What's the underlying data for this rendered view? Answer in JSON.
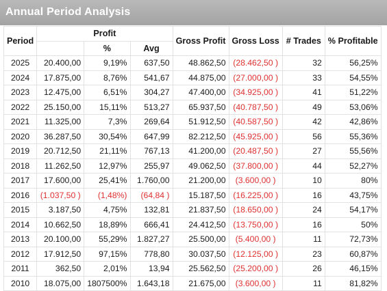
{
  "title": "Annual Period Analysis",
  "headers": {
    "period": "Period",
    "profit": "Profit",
    "profit_pct": "%",
    "profit_avg": "Avg",
    "gross_profit": "Gross Profit",
    "gross_loss": "Gross Loss",
    "trades": "# Trades",
    "pct_profitable": "% Profitable"
  },
  "colors": {
    "negative": "#e03030",
    "title_bar": "#a9a9a9",
    "title_text": "#ffffff"
  },
  "rows": [
    {
      "period": "2025",
      "profit": "20.400,00",
      "pct": "9,19%",
      "avg": "637,50",
      "gross_profit": "48.862,50",
      "gross_loss": "(28.462,50 )",
      "trades": "32",
      "pct_profitable": "56,25%",
      "neg_profit": false
    },
    {
      "period": "2024",
      "profit": "17.875,00",
      "pct": "8,76%",
      "avg": "541,67",
      "gross_profit": "44.875,00",
      "gross_loss": "(27.000,00 )",
      "trades": "33",
      "pct_profitable": "54,55%",
      "neg_profit": false
    },
    {
      "period": "2023",
      "profit": "12.475,00",
      "pct": "6,51%",
      "avg": "304,27",
      "gross_profit": "47.400,00",
      "gross_loss": "(34.925,00 )",
      "trades": "41",
      "pct_profitable": "51,22%",
      "neg_profit": false
    },
    {
      "period": "2022",
      "profit": "25.150,00",
      "pct": "15,11%",
      "avg": "513,27",
      "gross_profit": "65.937,50",
      "gross_loss": "(40.787,50 )",
      "trades": "49",
      "pct_profitable": "53,06%",
      "neg_profit": false
    },
    {
      "period": "2021",
      "profit": "11.325,00",
      "pct": "7,3%",
      "avg": "269,64",
      "gross_profit": "51.912,50",
      "gross_loss": "(40.587,50 )",
      "trades": "42",
      "pct_profitable": "42,86%",
      "neg_profit": false
    },
    {
      "period": "2020",
      "profit": "36.287,50",
      "pct": "30,54%",
      "avg": "647,99",
      "gross_profit": "82.212,50",
      "gross_loss": "(45.925,00 )",
      "trades": "56",
      "pct_profitable": "55,36%",
      "neg_profit": false
    },
    {
      "period": "2019",
      "profit": "20.712,50",
      "pct": "21,11%",
      "avg": "767,13",
      "gross_profit": "41.200,00",
      "gross_loss": "(20.487,50 )",
      "trades": "27",
      "pct_profitable": "55,56%",
      "neg_profit": false
    },
    {
      "period": "2018",
      "profit": "11.262,50",
      "pct": "12,97%",
      "avg": "255,97",
      "gross_profit": "49.062,50",
      "gross_loss": "(37.800,00 )",
      "trades": "44",
      "pct_profitable": "52,27%",
      "neg_profit": false
    },
    {
      "period": "2017",
      "profit": "17.600,00",
      "pct": "25,41%",
      "avg": "1.760,00",
      "gross_profit": "21.200,00",
      "gross_loss": "(3.600,00 )",
      "trades": "10",
      "pct_profitable": "80%",
      "neg_profit": false
    },
    {
      "period": "2016",
      "profit": "(1.037,50 )",
      "pct": "(1,48%)",
      "avg": "(64,84 )",
      "gross_profit": "15.187,50",
      "gross_loss": "(16.225,00 )",
      "trades": "16",
      "pct_profitable": "43,75%",
      "neg_profit": true
    },
    {
      "period": "2015",
      "profit": "3.187,50",
      "pct": "4,75%",
      "avg": "132,81",
      "gross_profit": "21.837,50",
      "gross_loss": "(18.650,00 )",
      "trades": "24",
      "pct_profitable": "54,17%",
      "neg_profit": false
    },
    {
      "period": "2014",
      "profit": "10.662,50",
      "pct": "18,89%",
      "avg": "666,41",
      "gross_profit": "24.412,50",
      "gross_loss": "(13.750,00 )",
      "trades": "16",
      "pct_profitable": "50%",
      "neg_profit": false
    },
    {
      "period": "2013",
      "profit": "20.100,00",
      "pct": "55,29%",
      "avg": "1.827,27",
      "gross_profit": "25.500,00",
      "gross_loss": "(5.400,00 )",
      "trades": "11",
      "pct_profitable": "72,73%",
      "neg_profit": false
    },
    {
      "period": "2012",
      "profit": "17.912,50",
      "pct": "97,15%",
      "avg": "778,80",
      "gross_profit": "30.037,50",
      "gross_loss": "(12.125,00 )",
      "trades": "23",
      "pct_profitable": "60,87%",
      "neg_profit": false
    },
    {
      "period": "2011",
      "profit": "362,50",
      "pct": "2,01%",
      "avg": "13,94",
      "gross_profit": "25.562,50",
      "gross_loss": "(25.200,00 )",
      "trades": "26",
      "pct_profitable": "46,15%",
      "neg_profit": false
    },
    {
      "period": "2010",
      "profit": "18.075,00",
      "pct": "1807500%",
      "avg": "1.643,18",
      "gross_profit": "21.675,00",
      "gross_loss": "(3.600,00 )",
      "trades": "11",
      "pct_profitable": "81,82%",
      "neg_profit": false
    }
  ]
}
